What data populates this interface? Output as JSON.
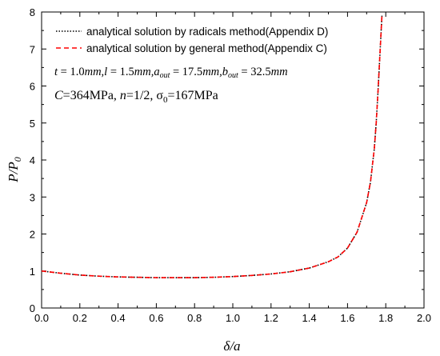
{
  "chart_data": {
    "type": "line",
    "xlabel": "δ/a",
    "ylabel": "P/P₀",
    "xlim": [
      0.0,
      2.0
    ],
    "ylim": [
      0,
      8
    ],
    "xticks": [
      "0.0",
      "0.2",
      "0.4",
      "0.6",
      "0.8",
      "1.0",
      "1.2",
      "1.4",
      "1.6",
      "1.8",
      "2.0"
    ],
    "yticks": [
      "0",
      "1",
      "2",
      "3",
      "4",
      "5",
      "6",
      "7",
      "8"
    ],
    "grid": false,
    "legend_position": "top-left",
    "series": [
      {
        "name": "analytical solution by radicals method(Appendix D)",
        "style": "dotted",
        "color": "#000000",
        "x": [
          0.0,
          0.1,
          0.2,
          0.3,
          0.4,
          0.5,
          0.6,
          0.7,
          0.8,
          0.9,
          1.0,
          1.1,
          1.2,
          1.3,
          1.4,
          1.5,
          1.55,
          1.6,
          1.65,
          1.7,
          1.72,
          1.74,
          1.75,
          1.76,
          1.77,
          1.78
        ],
        "y": [
          1.0,
          0.94,
          0.89,
          0.86,
          0.84,
          0.83,
          0.82,
          0.82,
          0.82,
          0.83,
          0.85,
          0.88,
          0.92,
          0.98,
          1.08,
          1.25,
          1.38,
          1.62,
          2.05,
          2.85,
          3.4,
          4.3,
          5.0,
          5.9,
          6.9,
          7.9
        ]
      },
      {
        "name": "analytical solution by general method(Appendix C)",
        "style": "dashed",
        "color": "#ff0000",
        "x": [
          0.0,
          0.1,
          0.2,
          0.3,
          0.4,
          0.5,
          0.6,
          0.7,
          0.8,
          0.9,
          1.0,
          1.1,
          1.2,
          1.3,
          1.4,
          1.5,
          1.55,
          1.6,
          1.65,
          1.7,
          1.72,
          1.74,
          1.75,
          1.76,
          1.77,
          1.78
        ],
        "y": [
          1.0,
          0.94,
          0.89,
          0.86,
          0.84,
          0.83,
          0.82,
          0.82,
          0.82,
          0.83,
          0.85,
          0.88,
          0.92,
          0.98,
          1.08,
          1.25,
          1.38,
          1.62,
          2.05,
          2.85,
          3.4,
          4.3,
          5.0,
          5.9,
          6.9,
          7.9
        ]
      }
    ],
    "annotations": [
      "t = 1.0mm, l = 1.5mm, aout = 17.5mm, bout = 32.5mm",
      "C=364MPa, n=1/2, σ0=167MPa"
    ]
  },
  "ylabel_parts": {
    "main": "P/P",
    "sub": "0"
  },
  "anno1": {
    "t": "t",
    "t_val": " = 1.0",
    "t_unit": "mm",
    "l": ",l",
    "l_val": " = 1.5",
    "l_unit": "mm",
    "a": ",a",
    "a_sub": "out",
    "a_val": " = 17.5",
    "a_unit": "mm",
    "b": ",b",
    "b_sub": "out",
    "b_val": " = 32.5",
    "b_unit": "mm"
  },
  "anno2": {
    "c": "C",
    "c_val": "=364MPa, ",
    "n": "n",
    "n_val": "=1/2, σ",
    "s_sub": "0",
    "s_val": "=167MPa"
  }
}
